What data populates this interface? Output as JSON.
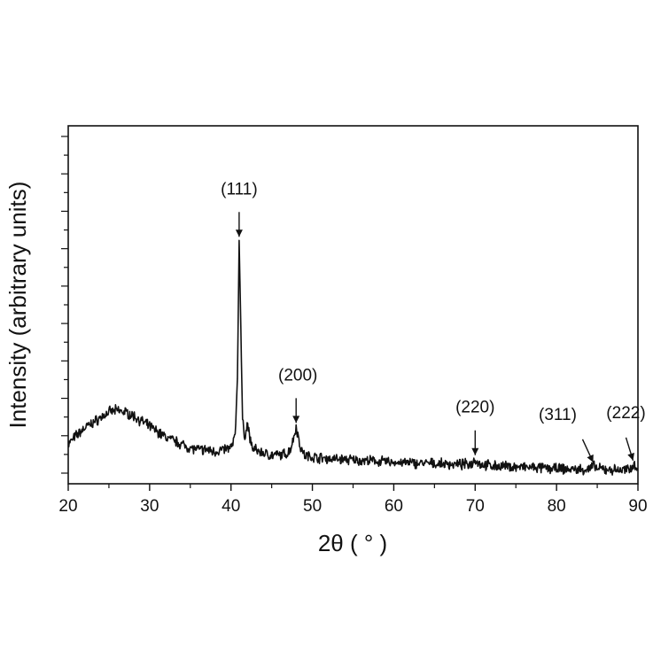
{
  "chart_data": {
    "type": "line",
    "title": "",
    "xlabel": "2θ ( ° )",
    "ylabel": "Intensity (arbitrary units)",
    "xlim": [
      20,
      90
    ],
    "xticks": [
      20,
      30,
      40,
      50,
      60,
      70,
      80,
      90
    ],
    "ylim": [
      0,
      10
    ],
    "y_tick_labels": "none",
    "grid": false,
    "line_color": "#111111",
    "series": [
      {
        "x": [
          20,
          21,
          22,
          23,
          24,
          25,
          26,
          27,
          28,
          29,
          30,
          31,
          32,
          33,
          34,
          35,
          36,
          37,
          38,
          39,
          40,
          40.5,
          40.8,
          41.0,
          41.2,
          41.4,
          41.7,
          42.0,
          42.3,
          42.6,
          43,
          44,
          45,
          46,
          47,
          47.5,
          48.0,
          48.5,
          49,
          50,
          52,
          54,
          56,
          58,
          60,
          62,
          64,
          66,
          68,
          69.5,
          70.0,
          70.5,
          72,
          74,
          76,
          78,
          80,
          82,
          84,
          84.5,
          85,
          86,
          87,
          88,
          89,
          89.4,
          90
        ],
        "y": [
          1.1,
          1.35,
          1.55,
          1.7,
          1.85,
          2.0,
          2.05,
          2.0,
          1.9,
          1.75,
          1.6,
          1.45,
          1.3,
          1.2,
          1.1,
          1.0,
          0.95,
          0.95,
          0.9,
          0.95,
          1.0,
          1.3,
          3.0,
          6.8,
          4.5,
          1.8,
          1.3,
          1.7,
          1.3,
          1.0,
          0.95,
          0.85,
          0.8,
          0.8,
          0.85,
          1.1,
          1.6,
          1.05,
          0.8,
          0.75,
          0.7,
          0.68,
          0.65,
          0.63,
          0.6,
          0.58,
          0.57,
          0.55,
          0.54,
          0.55,
          0.7,
          0.55,
          0.5,
          0.48,
          0.46,
          0.44,
          0.42,
          0.4,
          0.4,
          0.5,
          0.42,
          0.4,
          0.39,
          0.38,
          0.4,
          0.55,
          0.45
        ]
      }
    ],
    "annotations": [
      {
        "label": "(111)",
        "x": 41.0,
        "y": 6.8
      },
      {
        "label": "(200)",
        "x": 48.0,
        "y": 1.6
      },
      {
        "label": "(220)",
        "x": 70.0,
        "y": 0.7
      },
      {
        "label": "(311)",
        "x": 84.5,
        "y": 0.5
      },
      {
        "label": "(222)",
        "x": 89.4,
        "y": 0.55
      }
    ]
  }
}
